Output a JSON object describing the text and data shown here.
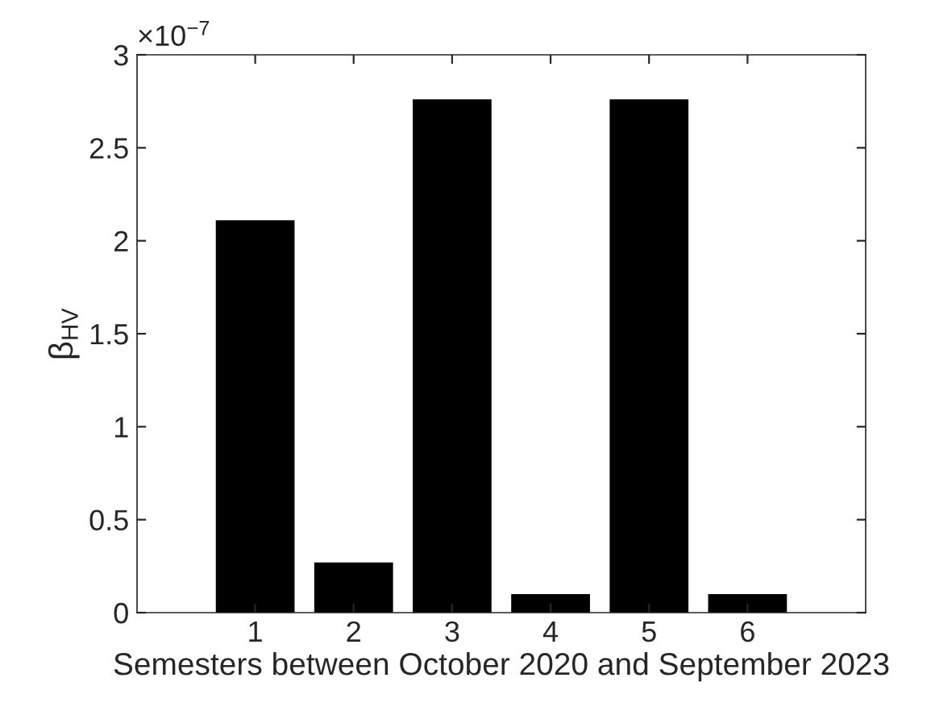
{
  "chart_data": {
    "type": "bar",
    "xlabel": "Semesters between October 2020 and September 2023",
    "ylabel": "β$_{HV}$",
    "categories": [
      "1",
      "2",
      "3",
      "4",
      "5",
      "6"
    ],
    "values": [
      2.11,
      0.27,
      2.76,
      0.1,
      2.76,
      0.1
    ],
    "color": "#000000",
    "ylim": [
      0,
      3
    ],
    "yticks": [
      0,
      0.5,
      1,
      1.5,
      2,
      2.5,
      3
    ],
    "annotations": [
      "×10$^{−7}$"
    ],
    "grid": false
  }
}
